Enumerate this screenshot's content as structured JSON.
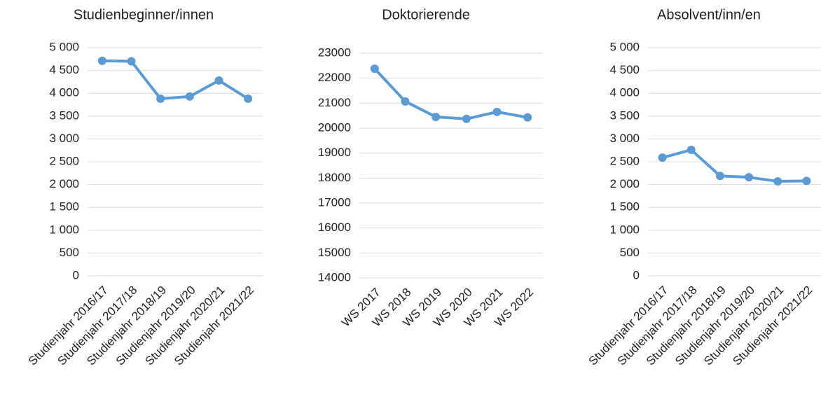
{
  "chart_data": [
    {
      "type": "line",
      "title": "Studienbeginner/innen",
      "categories": [
        "Studienjahr 2016/17",
        "Studienjahr 2017/18",
        "Studienjahr 2018/19",
        "Studienjahr 2019/20",
        "Studienjahr 2020/21",
        "Studienjahr 2021/22"
      ],
      "series": [
        {
          "name": "Studienbeginner/innen",
          "color": "#5b9bd5",
          "values": [
            4710,
            4700,
            3880,
            3930,
            4280,
            3880
          ]
        }
      ],
      "ylim": [
        0,
        5000
      ],
      "yticks": [
        0,
        500,
        {
          "value": 1000,
          "label": "1 000"
        },
        {
          "value": 1500,
          "label": "1 500"
        },
        {
          "value": 2000,
          "label": "2 000"
        },
        {
          "value": 2500,
          "label": "2 500"
        },
        {
          "value": 3000,
          "label": "3 000"
        },
        {
          "value": 3500,
          "label": "3 500"
        },
        {
          "value": 4000,
          "label": "4 000"
        },
        {
          "value": 4500,
          "label": "4 500"
        },
        {
          "value": 5000,
          "label": "5 000"
        }
      ],
      "grid": true
    },
    {
      "type": "line",
      "title": "Doktorierende",
      "categories": [
        "WS 2017",
        "WS 2018",
        "WS 2019",
        "WS 2020",
        "WS 2021",
        "WS 2022"
      ],
      "series": [
        {
          "name": "Doktorierende",
          "color": "#5b9bd5",
          "values": [
            22380,
            21070,
            20450,
            20370,
            20650,
            20430
          ]
        }
      ],
      "ylim": [
        14000,
        23000
      ],
      "yticks": [
        14000,
        15000,
        16000,
        17000,
        18000,
        19000,
        20000,
        21000,
        22000,
        23000
      ],
      "grid": true
    },
    {
      "type": "line",
      "title": "Absolvent/inn/en",
      "categories": [
        "Studienjahr 2016/17",
        "Studienjahr 2017/18",
        "Studienjahr 2018/19",
        "Studienjahr 2019/20",
        "Studienjahr 2020/21",
        "Studienjahr 2021/22"
      ],
      "series": [
        {
          "name": "Absolvent/inn/en",
          "color": "#5b9bd5",
          "values": [
            2590,
            2760,
            2190,
            2160,
            2070,
            2080
          ]
        }
      ],
      "ylim": [
        0,
        5000
      ],
      "yticks": [
        0,
        500,
        {
          "value": 1000,
          "label": "1 000"
        },
        {
          "value": 1500,
          "label": "1 500"
        },
        {
          "value": 2000,
          "label": "2 000"
        },
        {
          "value": 2500,
          "label": "2 500"
        },
        {
          "value": 3000,
          "label": "3 000"
        },
        {
          "value": 3500,
          "label": "3 500"
        },
        {
          "value": 4000,
          "label": "4 000"
        },
        {
          "value": 4500,
          "label": "4 500"
        },
        {
          "value": 5000,
          "label": "5 000"
        }
      ],
      "grid": true
    }
  ]
}
